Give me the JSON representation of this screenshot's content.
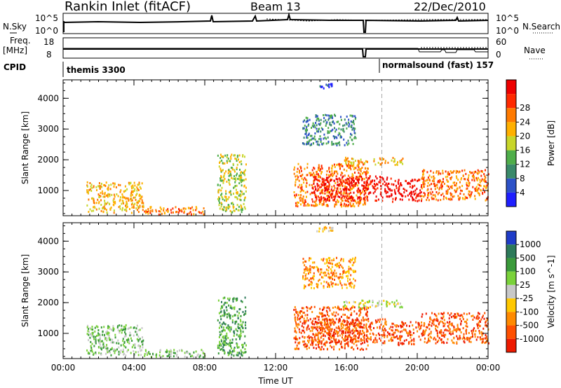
{
  "header": {
    "station": "Rankin Inlet (fitACF)",
    "beam": "Beam 13",
    "date": "22/Dec/2010"
  },
  "top_panels": {
    "nsky_label": "N.Sky",
    "nsky_ticks": [
      "10^5",
      "10^0"
    ],
    "nsearch_label": "N.Search",
    "freq_label_1": "Freq.",
    "freq_label_2": "[MHz]",
    "freq_ticks": [
      "18",
      "8"
    ],
    "nave_label": "Nave",
    "nave_ticks": [
      "60",
      "0"
    ],
    "cpid_label": "CPID",
    "cpid_segments": [
      "themis 3300",
      "normalsound (fast) 157"
    ]
  },
  "chart_data": [
    {
      "type": "heatmap",
      "title": "",
      "xlabel": "Time UT",
      "ylabel": "Slant Range [km]",
      "x_ticks": [
        "00:00",
        "04:00",
        "08:00",
        "12:00",
        "16:00",
        "20:00",
        "00:00"
      ],
      "y_ticks": [
        "1000",
        "2000",
        "3000",
        "4000"
      ],
      "xlim_hours": [
        0,
        24
      ],
      "ylim_km": [
        180,
        4600
      ],
      "colorbar": {
        "label": "Power [dB]",
        "ticks": [
          "4",
          "8",
          "12",
          "16",
          "20",
          "24",
          "28"
        ],
        "colors": [
          "#1f1fff",
          "#2d52c8",
          "#3a8a6a",
          "#4fae4a",
          "#c8d62a",
          "#ffb000",
          "#ff7a00",
          "#ff2a00",
          "#ee0000"
        ]
      },
      "echo_regions": [
        {
          "t0": 1.3,
          "t1": 4.5,
          "r0": 300,
          "r1": 1300,
          "level": 5
        },
        {
          "t0": 4.5,
          "t1": 8.0,
          "r0": 250,
          "r1": 500,
          "level": 6
        },
        {
          "t0": 8.7,
          "t1": 10.3,
          "r0": 300,
          "r1": 2200,
          "level": 4
        },
        {
          "t0": 13.0,
          "t1": 17.2,
          "r0": 500,
          "r1": 1900,
          "level": 6
        },
        {
          "t0": 14.0,
          "t1": 18.5,
          "r0": 700,
          "r1": 1500,
          "level": 8
        },
        {
          "t0": 18.5,
          "t1": 20.2,
          "r0": 650,
          "r1": 1400,
          "level": 8
        },
        {
          "t0": 20.2,
          "t1": 24.0,
          "r0": 700,
          "r1": 1700,
          "level": 6
        },
        {
          "t0": 15.8,
          "t1": 19.2,
          "r0": 1850,
          "r1": 2100,
          "level": 5
        },
        {
          "t0": 13.5,
          "t1": 16.5,
          "r0": 2500,
          "r1": 3500,
          "level": 2
        },
        {
          "t0": 14.3,
          "t1": 15.2,
          "r0": 4350,
          "r1": 4500,
          "level": 1
        }
      ]
    },
    {
      "type": "heatmap",
      "title": "",
      "xlabel": "Time UT",
      "ylabel": "Slant Range [km]",
      "x_ticks": [
        "00:00",
        "04:00",
        "08:00",
        "12:00",
        "16:00",
        "20:00",
        "00:00"
      ],
      "y_ticks": [
        "1000",
        "2000",
        "3000",
        "4000"
      ],
      "xlim_hours": [
        0,
        24
      ],
      "ylim_km": [
        180,
        4600
      ],
      "colorbar": {
        "label": "Velocity [m s^-1]",
        "ticks": [
          "1000",
          "500",
          "100",
          "25",
          "-25",
          "-100",
          "-500",
          "-1000"
        ],
        "colors": [
          "#1f3cc8",
          "#2d7a5a",
          "#3a9a3a",
          "#7ad23a",
          "#c8c8c8",
          "#ffc800",
          "#ff8a00",
          "#ff5000",
          "#ee1a00"
        ]
      },
      "echo_regions": [
        {
          "t0": 1.3,
          "t1": 4.5,
          "r0": 300,
          "r1": 1300,
          "level": 3
        },
        {
          "t0": 4.5,
          "t1": 8.0,
          "r0": 250,
          "r1": 500,
          "level": 3
        },
        {
          "t0": 8.7,
          "t1": 10.3,
          "r0": 300,
          "r1": 2200,
          "level": 2
        },
        {
          "t0": 13.0,
          "t1": 17.2,
          "r0": 500,
          "r1": 1900,
          "level": 7
        },
        {
          "t0": 14.0,
          "t1": 18.5,
          "r0": 700,
          "r1": 1500,
          "level": 7
        },
        {
          "t0": 18.5,
          "t1": 20.2,
          "r0": 650,
          "r1": 1400,
          "level": 7
        },
        {
          "t0": 20.2,
          "t1": 24.0,
          "r0": 700,
          "r1": 1700,
          "level": 7
        },
        {
          "t0": 15.8,
          "t1": 19.2,
          "r0": 1850,
          "r1": 2100,
          "level": 4
        },
        {
          "t0": 13.5,
          "t1": 16.5,
          "r0": 2500,
          "r1": 3500,
          "level": 6
        },
        {
          "t0": 14.3,
          "t1": 15.2,
          "r0": 4350,
          "r1": 4500,
          "level": 5
        }
      ]
    }
  ]
}
